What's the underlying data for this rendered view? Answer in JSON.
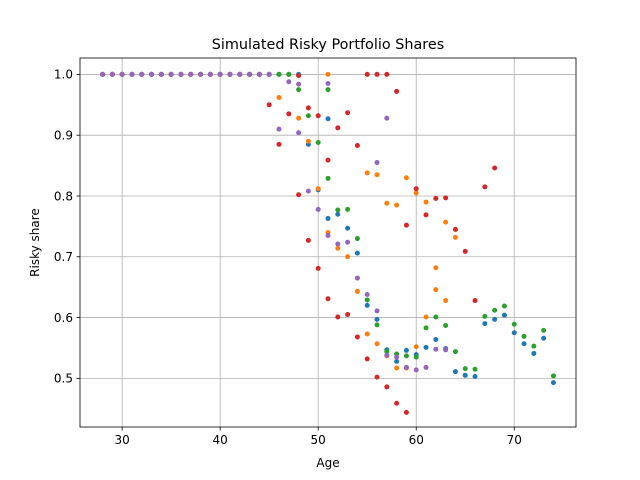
{
  "chart_data": {
    "type": "scatter",
    "title": "Simulated Risky Portfolio Shares",
    "xlabel": "Age",
    "ylabel": "Risky share",
    "xlim": [
      25.7,
      76.3
    ],
    "ylim": [
      0.42,
      1.027
    ],
    "xticks": [
      30,
      40,
      50,
      60,
      70
    ],
    "yticks": [
      0.5,
      0.6,
      0.7,
      0.8,
      0.9,
      1.0
    ],
    "ytick_labels": [
      "0.5",
      "0.6",
      "0.7",
      "0.8",
      "0.9",
      "1.0"
    ],
    "grid": true,
    "series": [
      {
        "color": "#1f77b4",
        "points": [
          [
            28,
            1.0
          ],
          [
            29,
            1.0
          ],
          [
            30,
            1.0
          ],
          [
            31,
            1.0
          ],
          [
            32,
            1.0
          ],
          [
            33,
            1.0
          ],
          [
            34,
            1.0
          ],
          [
            35,
            1.0
          ],
          [
            36,
            1.0
          ],
          [
            37,
            1.0
          ],
          [
            38,
            1.0
          ],
          [
            39,
            1.0
          ],
          [
            40,
            1.0
          ],
          [
            41,
            1.0
          ],
          [
            42,
            1.0
          ],
          [
            43,
            1.0
          ],
          [
            44,
            1.0
          ],
          [
            45,
            1.0
          ],
          [
            46,
            1.0
          ],
          [
            47,
            1.0
          ],
          [
            48,
            1.0
          ],
          [
            49,
            0.885
          ],
          [
            50,
            0.81
          ],
          [
            51,
            0.927
          ],
          [
            51,
            0.763
          ],
          [
            52,
            0.77
          ],
          [
            53,
            0.747
          ],
          [
            54,
            0.706
          ],
          [
            55,
            0.62
          ],
          [
            56,
            0.597
          ],
          [
            57,
            0.547
          ],
          [
            58,
            0.528
          ],
          [
            59,
            0.546
          ],
          [
            60,
            0.539
          ],
          [
            61,
            0.551
          ],
          [
            62,
            0.564
          ],
          [
            63,
            0.549
          ],
          [
            64,
            0.511
          ],
          [
            65,
            0.505
          ],
          [
            66,
            0.503
          ],
          [
            67,
            0.59
          ],
          [
            68,
            0.597
          ],
          [
            69,
            0.604
          ],
          [
            70,
            0.575
          ],
          [
            71,
            0.557
          ],
          [
            72,
            0.541
          ],
          [
            73,
            0.566
          ],
          [
            74,
            0.493
          ]
        ]
      },
      {
        "color": "#ff7f0e",
        "points": [
          [
            28,
            1.0
          ],
          [
            29,
            1.0
          ],
          [
            30,
            1.0
          ],
          [
            31,
            1.0
          ],
          [
            32,
            1.0
          ],
          [
            33,
            1.0
          ],
          [
            34,
            1.0
          ],
          [
            35,
            1.0
          ],
          [
            36,
            1.0
          ],
          [
            37,
            1.0
          ],
          [
            38,
            1.0
          ],
          [
            39,
            1.0
          ],
          [
            40,
            1.0
          ],
          [
            41,
            1.0
          ],
          [
            42,
            1.0
          ],
          [
            43,
            1.0
          ],
          [
            44,
            1.0
          ],
          [
            45,
            1.0
          ],
          [
            46,
            0.962
          ],
          [
            47,
            1.0
          ],
          [
            48,
            0.928
          ],
          [
            49,
            0.89
          ],
          [
            50,
            0.812
          ],
          [
            51,
            1.0
          ],
          [
            51,
            0.74
          ],
          [
            52,
            0.714
          ],
          [
            53,
            0.7
          ],
          [
            54,
            0.643
          ],
          [
            55,
            0.838
          ],
          [
            55,
            0.573
          ],
          [
            56,
            0.835
          ],
          [
            56,
            0.557
          ],
          [
            57,
            0.788
          ],
          [
            57,
            0.537
          ],
          [
            58,
            0.785
          ],
          [
            58,
            0.517
          ],
          [
            59,
            0.83
          ],
          [
            59,
            0.517
          ],
          [
            60,
            0.805
          ],
          [
            60,
            0.552
          ],
          [
            61,
            0.79
          ],
          [
            61,
            0.601
          ],
          [
            62,
            0.682
          ],
          [
            62,
            0.646
          ],
          [
            63,
            0.757
          ],
          [
            63,
            0.628
          ],
          [
            64,
            0.732
          ]
        ]
      },
      {
        "color": "#2ca02c",
        "points": [
          [
            28,
            1.0
          ],
          [
            29,
            1.0
          ],
          [
            30,
            1.0
          ],
          [
            31,
            1.0
          ],
          [
            32,
            1.0
          ],
          [
            33,
            1.0
          ],
          [
            34,
            1.0
          ],
          [
            35,
            1.0
          ],
          [
            36,
            1.0
          ],
          [
            37,
            1.0
          ],
          [
            38,
            1.0
          ],
          [
            39,
            1.0
          ],
          [
            40,
            1.0
          ],
          [
            41,
            1.0
          ],
          [
            42,
            1.0
          ],
          [
            43,
            1.0
          ],
          [
            44,
            1.0
          ],
          [
            45,
            1.0
          ],
          [
            46,
            1.0
          ],
          [
            47,
            1.0
          ],
          [
            48,
            0.975
          ],
          [
            49,
            0.932
          ],
          [
            50,
            0.888
          ],
          [
            51,
            0.975
          ],
          [
            51,
            0.829
          ],
          [
            52,
            0.777
          ],
          [
            53,
            0.778
          ],
          [
            54,
            0.73
          ],
          [
            55,
            0.629
          ],
          [
            56,
            0.588
          ],
          [
            57,
            0.544
          ],
          [
            58,
            0.54
          ],
          [
            59,
            0.537
          ],
          [
            60,
            0.535
          ],
          [
            61,
            0.583
          ],
          [
            62,
            0.601
          ],
          [
            63,
            0.587
          ],
          [
            64,
            0.544
          ],
          [
            65,
            0.516
          ],
          [
            66,
            0.515
          ],
          [
            67,
            0.602
          ],
          [
            68,
            0.612
          ],
          [
            69,
            0.619
          ],
          [
            70,
            0.589
          ],
          [
            71,
            0.569
          ],
          [
            72,
            0.553
          ],
          [
            73,
            0.579
          ],
          [
            74,
            0.504
          ]
        ]
      },
      {
        "color": "#d62728",
        "points": [
          [
            28,
            1.0
          ],
          [
            29,
            1.0
          ],
          [
            30,
            1.0
          ],
          [
            31,
            1.0
          ],
          [
            32,
            1.0
          ],
          [
            33,
            1.0
          ],
          [
            34,
            1.0
          ],
          [
            35,
            1.0
          ],
          [
            36,
            1.0
          ],
          [
            37,
            1.0
          ],
          [
            38,
            1.0
          ],
          [
            39,
            1.0
          ],
          [
            40,
            1.0
          ],
          [
            41,
            1.0
          ],
          [
            42,
            1.0
          ],
          [
            43,
            1.0
          ],
          [
            44,
            1.0
          ],
          [
            45,
            0.95
          ],
          [
            46,
            0.885
          ],
          [
            47,
            0.935
          ],
          [
            48,
            0.998
          ],
          [
            48,
            0.802
          ],
          [
            49,
            0.945
          ],
          [
            49,
            0.727
          ],
          [
            50,
            0.932
          ],
          [
            50,
            0.681
          ],
          [
            51,
            0.859
          ],
          [
            51,
            0.631
          ],
          [
            52,
            0.912
          ],
          [
            52,
            0.601
          ],
          [
            53,
            0.937
          ],
          [
            53,
            0.605
          ],
          [
            54,
            0.883
          ],
          [
            54,
            0.568
          ],
          [
            55,
            1.0
          ],
          [
            55,
            0.532
          ],
          [
            56,
            1.0
          ],
          [
            56,
            0.502
          ],
          [
            57,
            1.0
          ],
          [
            57,
            0.486
          ],
          [
            58,
            0.972
          ],
          [
            58,
            0.459
          ],
          [
            59,
            0.752
          ],
          [
            59,
            0.444
          ],
          [
            60,
            0.812
          ],
          [
            61,
            0.769
          ],
          [
            62,
            0.796
          ],
          [
            63,
            0.797
          ],
          [
            64,
            0.745
          ],
          [
            65,
            0.709
          ],
          [
            66,
            0.628
          ],
          [
            67,
            0.815
          ],
          [
            68,
            0.846
          ]
        ]
      },
      {
        "color": "#9467bd",
        "points": [
          [
            28,
            1.0
          ],
          [
            29,
            1.0
          ],
          [
            30,
            1.0
          ],
          [
            31,
            1.0
          ],
          [
            32,
            1.0
          ],
          [
            33,
            1.0
          ],
          [
            34,
            1.0
          ],
          [
            35,
            1.0
          ],
          [
            36,
            1.0
          ],
          [
            37,
            1.0
          ],
          [
            38,
            1.0
          ],
          [
            39,
            1.0
          ],
          [
            40,
            1.0
          ],
          [
            41,
            1.0
          ],
          [
            42,
            1.0
          ],
          [
            43,
            1.0
          ],
          [
            44,
            1.0
          ],
          [
            45,
            1.0
          ],
          [
            46,
            0.91
          ],
          [
            47,
            0.988
          ],
          [
            48,
            0.904
          ],
          [
            48,
            0.984
          ],
          [
            49,
            0.808
          ],
          [
            50,
            0.778
          ],
          [
            51,
            0.985
          ],
          [
            51,
            0.735
          ],
          [
            52,
            0.721
          ],
          [
            53,
            0.724
          ],
          [
            54,
            0.665
          ],
          [
            55,
            0.638
          ],
          [
            56,
            0.611
          ],
          [
            56,
            0.855
          ],
          [
            57,
            0.928
          ],
          [
            57,
            0.538
          ],
          [
            58,
            0.535
          ],
          [
            59,
            0.518
          ],
          [
            60,
            0.514
          ],
          [
            61,
            0.518
          ],
          [
            62,
            0.548
          ],
          [
            63,
            0.547
          ]
        ]
      }
    ]
  }
}
